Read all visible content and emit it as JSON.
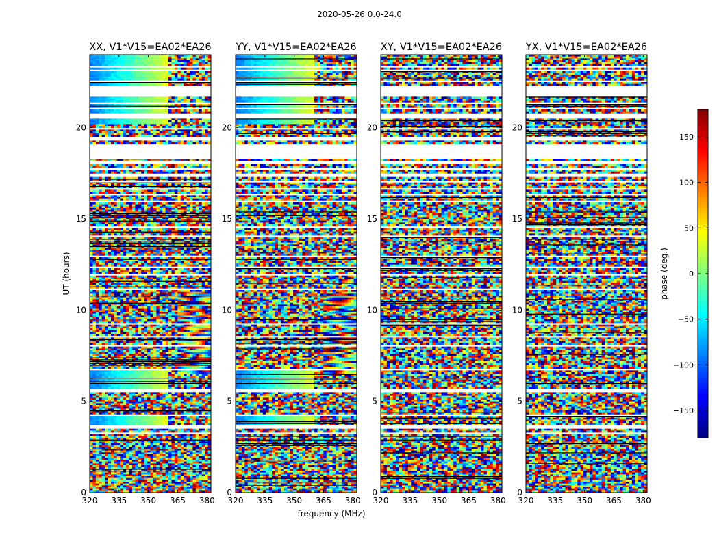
{
  "figure": {
    "suptitle": "2020-05-26 0.0-24.0"
  },
  "chart_data": {
    "type": "heatmap",
    "xlabel": "frequency (MHz)",
    "ylabel": "UT (hours)",
    "xlim": [
      320,
      382
    ],
    "ylim": [
      0,
      24
    ],
    "xticks": [
      320,
      335,
      350,
      365,
      380
    ],
    "yticks": [
      0,
      5,
      10,
      15,
      20
    ],
    "panels": [
      {
        "title": "XX, V1*V15=EA02*EA26",
        "polarization": "XX"
      },
      {
        "title": "YY, V1*V15=EA02*EA26",
        "polarization": "YY"
      },
      {
        "title": "XY, V1*V15=EA02*EA26",
        "polarization": "XY"
      },
      {
        "title": "YX, V1*V15=EA02*EA26",
        "polarization": "YX"
      }
    ],
    "colorbar": {
      "label": "phase (deg.)",
      "range": [
        -180,
        180
      ],
      "ticks": [
        -150,
        -100,
        -50,
        0,
        50,
        100,
        150
      ],
      "tick_labels": [
        "−150",
        "−100",
        "−50",
        "0",
        "50",
        "100",
        "150"
      ],
      "colormap": "jet"
    },
    "flagged_intervals_hours": [
      [
        0.0,
        0.05
      ],
      [
        1.45,
        1.55
      ],
      [
        2.0,
        2.05
      ],
      [
        2.45,
        2.55
      ],
      [
        3.2,
        3.25
      ],
      [
        3.55,
        3.7
      ],
      [
        4.0,
        4.05
      ],
      [
        4.2,
        4.35
      ],
      [
        5.55,
        5.65
      ],
      [
        5.8,
        5.85
      ],
      [
        6.7,
        6.75
      ],
      [
        8.05,
        8.1
      ],
      [
        8.5,
        8.55
      ],
      [
        9.25,
        9.3
      ],
      [
        11.1,
        11.15
      ],
      [
        11.9,
        12.0
      ],
      [
        12.3,
        12.35
      ],
      [
        12.95,
        13.0
      ],
      [
        14.0,
        14.05
      ],
      [
        14.5,
        14.55
      ],
      [
        15.9,
        15.95
      ],
      [
        16.3,
        16.35
      ],
      [
        16.65,
        16.7
      ],
      [
        17.05,
        17.1
      ],
      [
        17.35,
        17.45
      ],
      [
        17.7,
        17.75
      ],
      [
        18.05,
        18.15
      ],
      [
        18.3,
        19.05
      ],
      [
        19.3,
        19.45
      ],
      [
        19.95,
        20.0
      ],
      [
        20.5,
        20.75
      ],
      [
        21.0,
        21.1
      ],
      [
        21.35,
        21.4
      ],
      [
        21.7,
        22.3
      ],
      [
        22.55,
        22.6
      ],
      [
        23.1,
        23.15
      ],
      [
        23.35,
        23.4
      ]
    ]
  }
}
